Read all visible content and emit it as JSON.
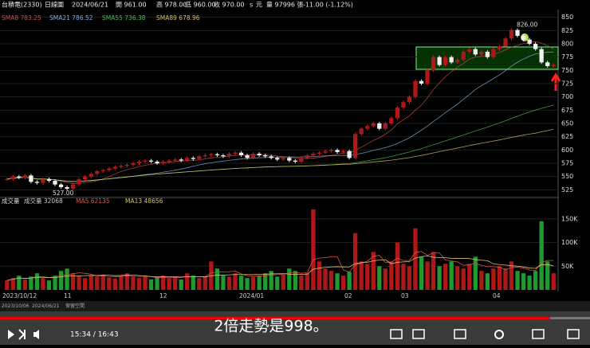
{
  "header": [
    "台積電(2330)",
    "日線圖",
    "2024/06/21",
    "開 961.00",
    "高 978.00",
    "低 960.00",
    "收 970.00",
    "s",
    "元",
    "量 97996 張",
    "-11.00 (-1.12%)"
  ],
  "price_panel": {
    "indicators": [
      {
        "label": "SMA8 783.25",
        "color": "#c8504a",
        "window": 8
      },
      {
        "label": "SMA21 786.52",
        "color": "#7fb3e0",
        "window": 21
      },
      {
        "label": "SMA55 736.38",
        "color": "#4fbf4f",
        "window": 55
      },
      {
        "label": "SMA89 678.96",
        "color": "#d9c36a",
        "window": 89
      }
    ],
    "ylim": [
      515,
      860
    ],
    "yticks": [
      850,
      825,
      800,
      775,
      750,
      725,
      700,
      675,
      650,
      625,
      600,
      575,
      550,
      525
    ],
    "high_label": {
      "value": 826,
      "label": "826.00"
    },
    "low_label": {
      "value": 527,
      "label": "527.00"
    },
    "closes": [
      545,
      550,
      548,
      552,
      540,
      538,
      545,
      542,
      535,
      530,
      527,
      535,
      545,
      550,
      555,
      560,
      562,
      565,
      568,
      570,
      572,
      575,
      578,
      580,
      578,
      575,
      578,
      580,
      582,
      580,
      585,
      583,
      588,
      590,
      592,
      590,
      588,
      593,
      595,
      590,
      585,
      593,
      590,
      588,
      585,
      582,
      585,
      580,
      578,
      585,
      590,
      593,
      595,
      598,
      600,
      596,
      598,
      585,
      630,
      640,
      645,
      650,
      640,
      650,
      660,
      680,
      690,
      700,
      730,
      725,
      750,
      775,
      760,
      775,
      765,
      770,
      785,
      790,
      780,
      785,
      775,
      790,
      795,
      810,
      826,
      815,
      808,
      800,
      790,
      765,
      758,
      760
    ]
  },
  "volume_panel": {
    "title": "成交量",
    "indicators": [
      {
        "label": "成交量 32068",
        "color": "#cccccc"
      },
      {
        "label": "MA5 62135",
        "color": "#e05050",
        "window": 5
      },
      {
        "label": "MA13 48656",
        "color": "#d9c36a",
        "window": 13
      }
    ],
    "ylim": [
      0,
      185
    ],
    "yticks": [
      {
        "value": 150,
        "label": "150K"
      },
      {
        "value": 100,
        "label": "100K"
      },
      {
        "value": 50,
        "label": "50K"
      }
    ],
    "volumes": [
      20,
      25,
      30,
      22,
      28,
      35,
      25,
      20,
      30,
      40,
      45,
      35,
      30,
      25,
      30,
      28,
      32,
      26,
      24,
      30,
      35,
      28,
      25,
      30,
      22,
      26,
      30,
      25,
      28,
      22,
      35,
      30,
      25,
      28,
      60,
      45,
      30,
      28,
      35,
      30,
      25,
      28,
      30,
      35,
      40,
      28,
      32,
      45,
      40,
      30,
      35,
      170,
      60,
      45,
      40,
      35,
      30,
      38,
      120,
      60,
      55,
      80,
      50,
      45,
      60,
      100,
      55,
      50,
      130,
      70,
      60,
      80,
      50,
      55,
      60,
      50,
      45,
      55,
      70,
      40,
      35,
      45,
      50,
      45,
      60,
      40,
      35,
      30,
      40,
      145,
      60,
      35
    ]
  },
  "date_axis": [
    "2023/10/12",
    "11",
    "12",
    "2024/01",
    "02",
    "03",
    "04"
  ],
  "toolbar": [
    "2023/10/06",
    "2024/06/21",
    "保留空間"
  ],
  "player": {
    "time": "15:34 / 16:43",
    "subtitle": "2倍走勢是998。"
  }
}
